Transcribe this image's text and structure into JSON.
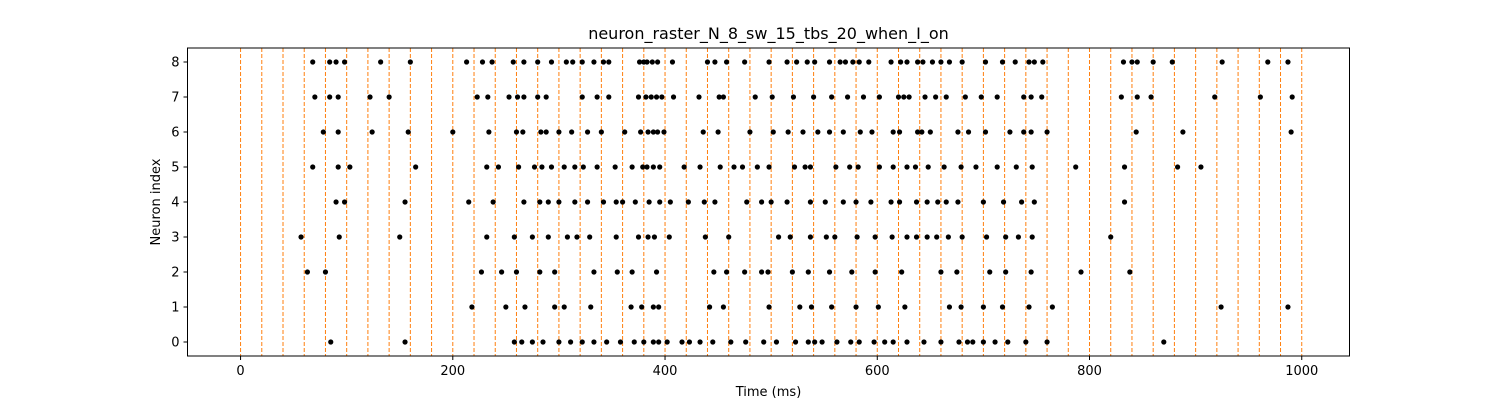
{
  "chart_data": {
    "type": "scatter",
    "title": "neuron_raster_N_8_sw_15_tbs_20_when_I_on",
    "xlabel": "Time (ms)",
    "ylabel": "Neuron index",
    "xlim": [
      -50,
      1045
    ],
    "ylim": [
      -0.4,
      8.4
    ],
    "xticks": [
      0,
      200,
      400,
      600,
      800,
      1000
    ],
    "yticks": [
      0,
      1,
      2,
      3,
      4,
      5,
      6,
      7,
      8
    ],
    "grid": false,
    "legend": "none",
    "marker_color": "#000000",
    "vline_color": "#ff7f0e",
    "vlines": [
      0,
      20,
      40,
      60,
      80,
      100,
      120,
      140,
      160,
      180,
      200,
      220,
      240,
      260,
      280,
      300,
      320,
      340,
      360,
      380,
      400,
      420,
      440,
      460,
      480,
      500,
      520,
      540,
      560,
      580,
      600,
      620,
      640,
      660,
      680,
      700,
      720,
      740,
      760,
      780,
      800,
      820,
      840,
      860,
      880,
      900,
      920,
      940,
      960,
      980,
      1000
    ],
    "spikes": [
      {
        "neuron": 8,
        "times": [
          68,
          84,
          90,
          98,
          132,
          160,
          213,
          228,
          237,
          257,
          267,
          280,
          293,
          307,
          313,
          322,
          333,
          342,
          347,
          376,
          380,
          383,
          388,
          393,
          407,
          440,
          447,
          458,
          475,
          498,
          515,
          524,
          534,
          541,
          555,
          565,
          570,
          577,
          583,
          592,
          613,
          622,
          628,
          638,
          643,
          652,
          660,
          668,
          680,
          702,
          718,
          730,
          743,
          748,
          756,
          832,
          840,
          845,
          860,
          878,
          925,
          968,
          987
        ]
      },
      {
        "neuron": 7,
        "times": [
          70,
          84,
          92,
          122,
          140,
          223,
          233,
          253,
          261,
          267,
          280,
          288,
          322,
          336,
          347,
          375,
          382,
          387,
          392,
          397,
          408,
          432,
          451,
          455,
          485,
          501,
          521,
          540,
          557,
          572,
          587,
          602,
          620,
          625,
          630,
          645,
          655,
          665,
          683,
          698,
          713,
          738,
          745,
          755,
          830,
          845,
          858,
          918,
          961,
          991
        ]
      },
      {
        "neuron": 6,
        "times": [
          78,
          92,
          124,
          158,
          200,
          234,
          260,
          266,
          283,
          288,
          300,
          312,
          327,
          340,
          362,
          377,
          384,
          389,
          393,
          399,
          436,
          450,
          480,
          502,
          516,
          530,
          544,
          555,
          568,
          584,
          595,
          615,
          621,
          638,
          642,
          650,
          676,
          686,
          702,
          725,
          738,
          745,
          760,
          844,
          888,
          990
        ]
      },
      {
        "neuron": 5,
        "times": [
          68,
          92,
          103,
          165,
          232,
          243,
          262,
          277,
          284,
          293,
          305,
          315,
          323,
          336,
          353,
          369,
          379,
          383,
          389,
          395,
          418,
          433,
          452,
          465,
          473,
          487,
          498,
          522,
          532,
          537,
          561,
          574,
          582,
          602,
          615,
          628,
          636,
          648,
          663,
          679,
          693,
          713,
          731,
          746,
          787,
          833,
          883,
          905
        ]
      },
      {
        "neuron": 4,
        "times": [
          90,
          98,
          155,
          215,
          238,
          267,
          282,
          290,
          300,
          315,
          327,
          342,
          354,
          360,
          372,
          385,
          395,
          405,
          422,
          437,
          447,
          477,
          491,
          500,
          515,
          537,
          551,
          568,
          580,
          594,
          613,
          621,
          637,
          647,
          657,
          665,
          676,
          700,
          719,
          736,
          748,
          833
        ]
      },
      {
        "neuron": 3,
        "times": [
          57,
          93,
          150,
          232,
          258,
          275,
          290,
          308,
          317,
          329,
          354,
          375,
          384,
          390,
          404,
          438,
          460,
          507,
          518,
          537,
          552,
          560,
          581,
          598,
          614,
          628,
          637,
          647,
          656,
          667,
          680,
          703,
          721,
          733,
          746,
          820
        ]
      },
      {
        "neuron": 2,
        "times": [
          63,
          80,
          227,
          246,
          260,
          282,
          296,
          333,
          355,
          369,
          392,
          446,
          458,
          475,
          491,
          497,
          520,
          535,
          555,
          576,
          598,
          623,
          660,
          675,
          706,
          721,
          745,
          792,
          838
        ]
      },
      {
        "neuron": 1,
        "times": [
          218,
          250,
          268,
          296,
          305,
          330,
          368,
          378,
          389,
          394,
          442,
          455,
          498,
          527,
          538,
          557,
          580,
          601,
          626,
          668,
          679,
          700,
          718,
          743,
          765,
          924,
          987
        ]
      },
      {
        "neuron": 0,
        "times": [
          85,
          155,
          258,
          265,
          275,
          285,
          300,
          311,
          322,
          333,
          345,
          358,
          371,
          380,
          389,
          394,
          402,
          416,
          423,
          433,
          445,
          462,
          476,
          493,
          505,
          523,
          535,
          541,
          548,
          562,
          575,
          583,
          597,
          607,
          615,
          628,
          644,
          660,
          677,
          685,
          690,
          700,
          711,
          723,
          740,
          760,
          870
        ]
      }
    ]
  }
}
